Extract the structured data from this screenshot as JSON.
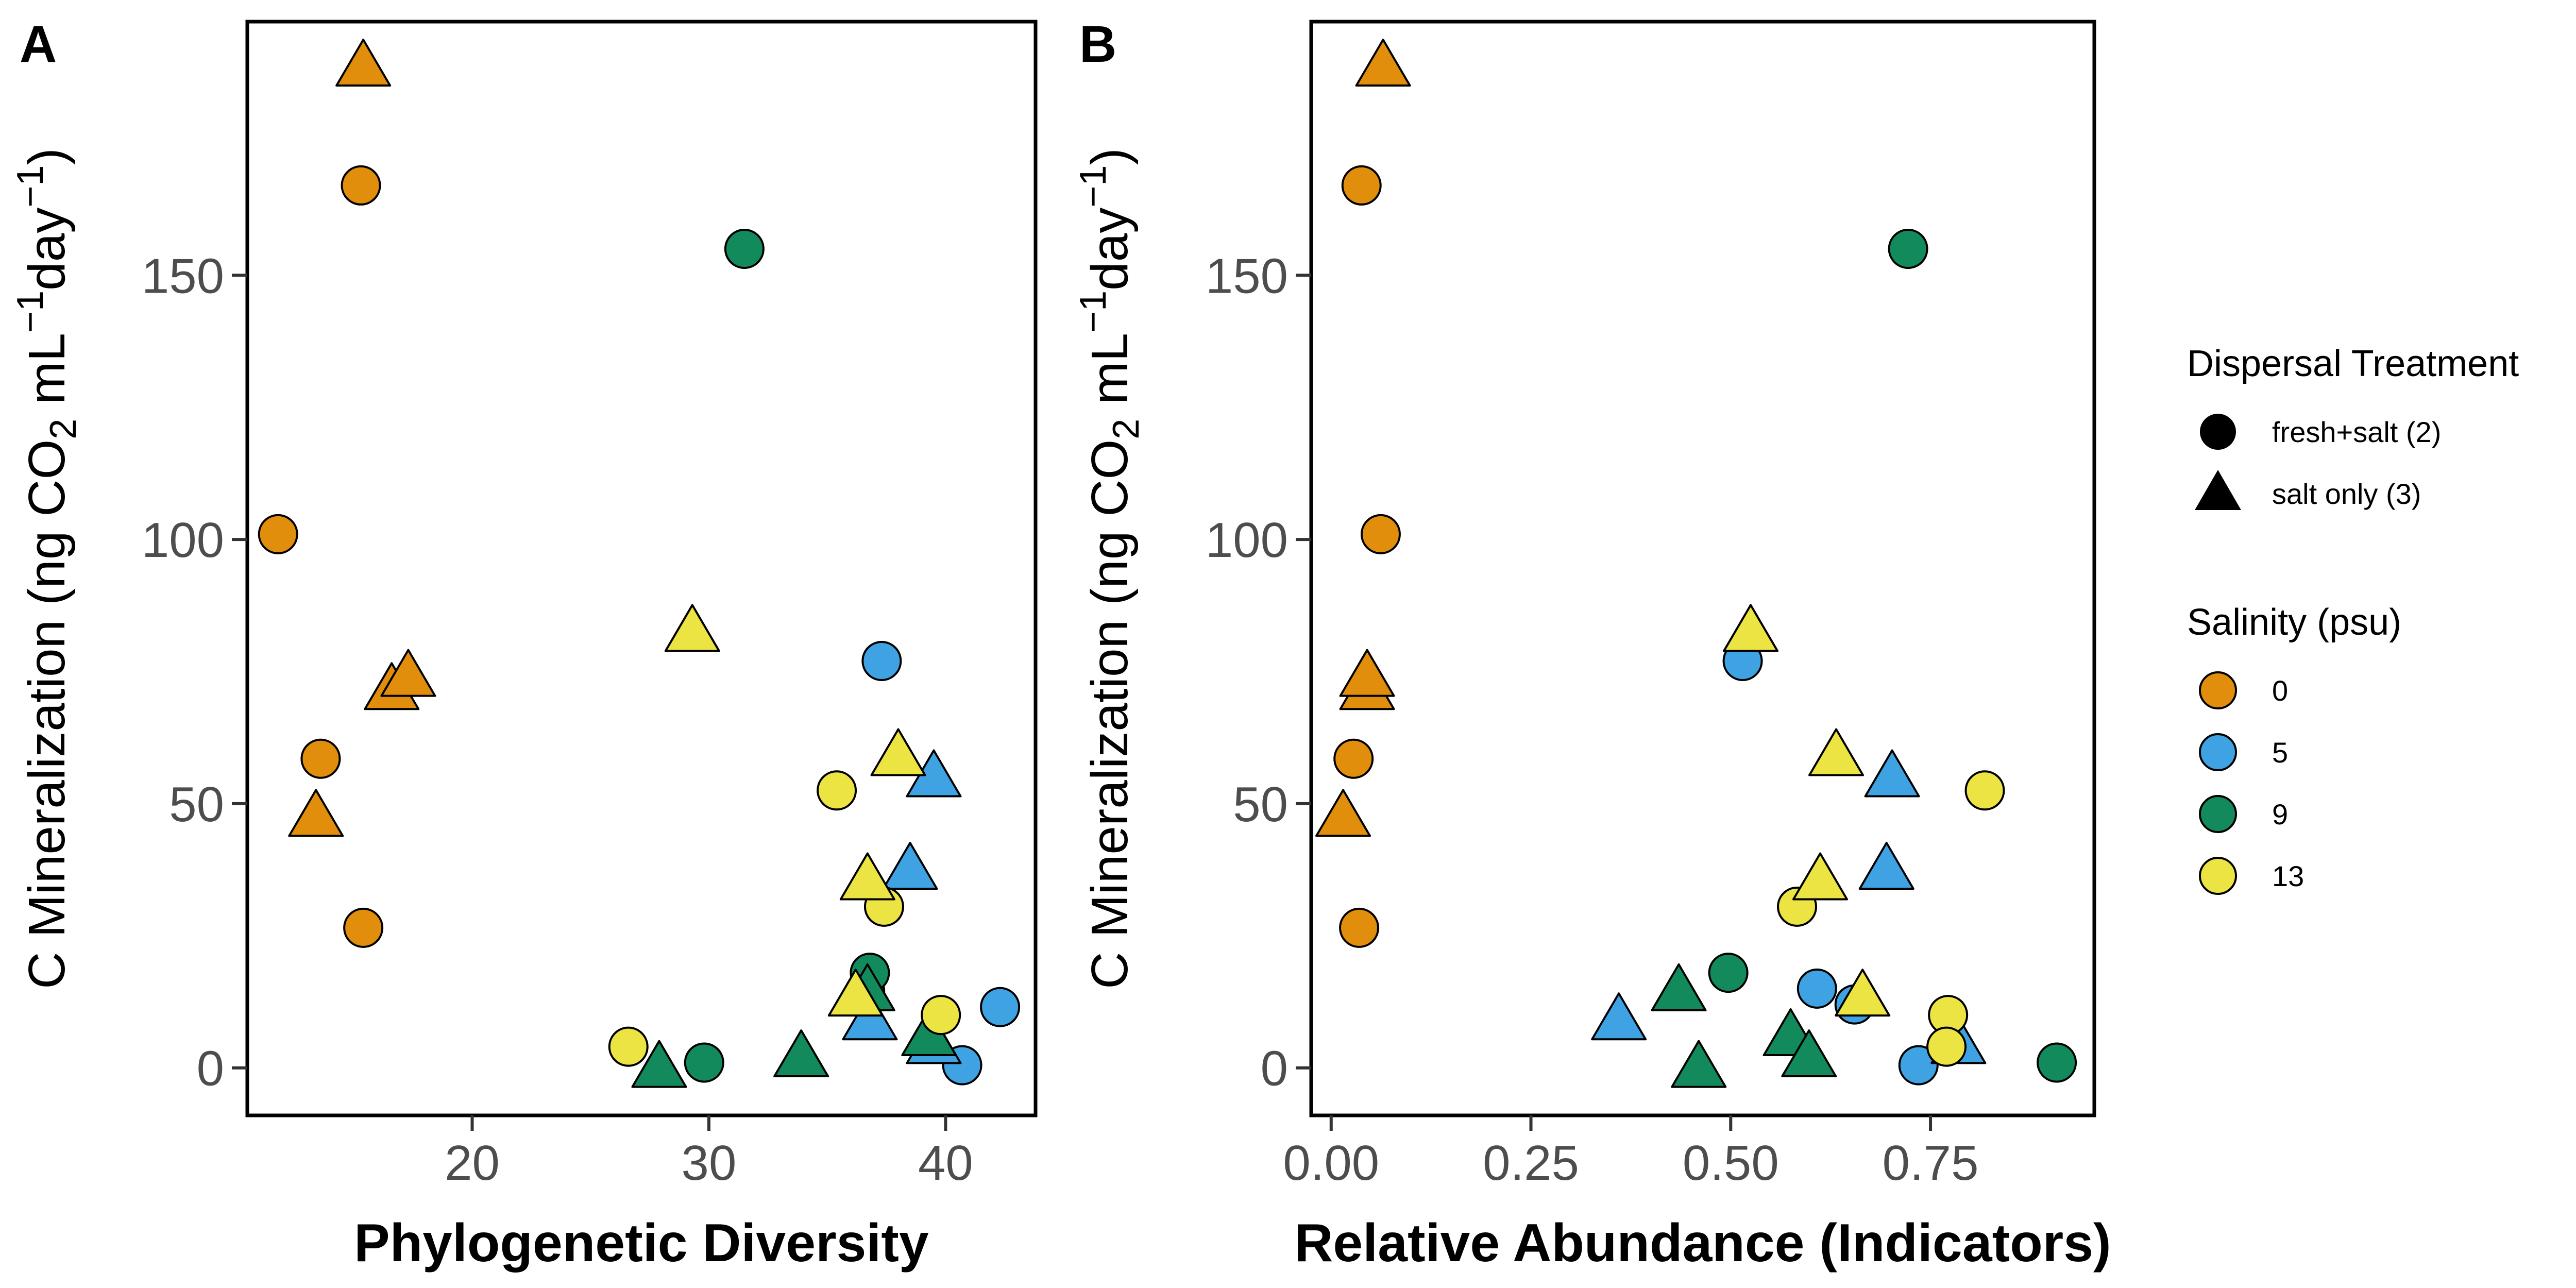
{
  "legend": {
    "shape_title": "Dispersal Treatment",
    "shape_entries": [
      {
        "label": "fresh+salt (2)",
        "shape": "circle"
      },
      {
        "label": "salt only (3)",
        "shape": "triangle"
      }
    ],
    "color_title": "Salinity (psu)",
    "color_entries": [
      {
        "label": "0",
        "color": "#E08E0B"
      },
      {
        "label": "5",
        "color": "#3FA3E3"
      },
      {
        "label": "9",
        "color": "#138A5C"
      },
      {
        "label": "13",
        "color": "#ECE442"
      }
    ]
  },
  "chart_data": [
    {
      "type": "scatter",
      "panel": "A",
      "xlabel": "Phylogenetic Diversity",
      "ylabel": {
        "main": "C Mineralization (ng CO",
        "sub": "2",
        "mid": " mL",
        "sup1": "−1",
        "mid2": "day",
        "sup2": "−1",
        "end": ")"
      },
      "xlim": [
        10.5,
        43.8
      ],
      "ylim": [
        -9,
        198
      ],
      "xticks": [
        20,
        30,
        40
      ],
      "xtick_labels": [
        "20",
        "30",
        "40"
      ],
      "yticks": [
        0,
        50,
        100,
        150
      ],
      "ytick_labels": [
        "0",
        "50",
        "100",
        "150"
      ],
      "grid": false,
      "points": [
        {
          "x": 11.8,
          "y": 101,
          "shape": "circle",
          "salinity": "0"
        },
        {
          "x": 15.3,
          "y": 167,
          "shape": "circle",
          "salinity": "0"
        },
        {
          "x": 13.6,
          "y": 58.5,
          "shape": "circle",
          "salinity": "0"
        },
        {
          "x": 15.4,
          "y": 26.5,
          "shape": "circle",
          "salinity": "0"
        },
        {
          "x": 15.4,
          "y": 190,
          "shape": "triangle",
          "salinity": "0"
        },
        {
          "x": 16.6,
          "y": 72,
          "shape": "triangle",
          "salinity": "0"
        },
        {
          "x": 17.3,
          "y": 74.5,
          "shape": "triangle",
          "salinity": "0"
        },
        {
          "x": 13.4,
          "y": 48,
          "shape": "triangle",
          "salinity": "0"
        },
        {
          "x": 37.3,
          "y": 77,
          "shape": "circle",
          "salinity": "5"
        },
        {
          "x": 42.3,
          "y": 11.5,
          "shape": "circle",
          "salinity": "5"
        },
        {
          "x": 40.7,
          "y": 0.5,
          "shape": "circle",
          "salinity": "5"
        },
        {
          "x": 36.6,
          "y": 14.5,
          "shape": "circle",
          "salinity": "5"
        },
        {
          "x": 39.5,
          "y": 55.5,
          "shape": "triangle",
          "salinity": "5"
        },
        {
          "x": 38.5,
          "y": 38,
          "shape": "triangle",
          "salinity": "5"
        },
        {
          "x": 36.8,
          "y": 9.5,
          "shape": "triangle",
          "salinity": "5"
        },
        {
          "x": 39.5,
          "y": 5,
          "shape": "triangle",
          "salinity": "5"
        },
        {
          "x": 31.5,
          "y": 155,
          "shape": "circle",
          "salinity": "9"
        },
        {
          "x": 29.8,
          "y": 1,
          "shape": "circle",
          "salinity": "9"
        },
        {
          "x": 36.8,
          "y": 18,
          "shape": "circle",
          "salinity": "9"
        },
        {
          "x": 27.9,
          "y": 0.5,
          "shape": "triangle",
          "salinity": "9"
        },
        {
          "x": 33.9,
          "y": 2.5,
          "shape": "triangle",
          "salinity": "9"
        },
        {
          "x": 36.7,
          "y": 15,
          "shape": "triangle",
          "salinity": "9"
        },
        {
          "x": 39.3,
          "y": 6.5,
          "shape": "triangle",
          "salinity": "9"
        },
        {
          "x": 35.4,
          "y": 52.5,
          "shape": "circle",
          "salinity": "13"
        },
        {
          "x": 37.4,
          "y": 30.5,
          "shape": "circle",
          "salinity": "13"
        },
        {
          "x": 26.6,
          "y": 4,
          "shape": "circle",
          "salinity": "13"
        },
        {
          "x": 39.8,
          "y": 10,
          "shape": "circle",
          "salinity": "13"
        },
        {
          "x": 29.3,
          "y": 83,
          "shape": "triangle",
          "salinity": "13"
        },
        {
          "x": 38.0,
          "y": 59.5,
          "shape": "triangle",
          "salinity": "13"
        },
        {
          "x": 36.7,
          "y": 36,
          "shape": "triangle",
          "salinity": "13"
        },
        {
          "x": 36.2,
          "y": 14,
          "shape": "triangle",
          "salinity": "13"
        }
      ]
    },
    {
      "type": "scatter",
      "panel": "B",
      "xlabel": "Relative Abundance (Indicators)",
      "ylabel": {
        "main": "C Mineralization (ng CO",
        "sub": "2",
        "mid": " mL",
        "sup1": "−1",
        "mid2": "day",
        "sup2": "−1",
        "end": ")"
      },
      "xlim": [
        -0.025,
        0.955
      ],
      "ylim": [
        -9,
        198
      ],
      "xticks": [
        0,
        0.25,
        0.5,
        0.75
      ],
      "xtick_labels": [
        "0.00",
        "0.25",
        "0.50",
        "0.75"
      ],
      "yticks": [
        0,
        50,
        100,
        150
      ],
      "ytick_labels": [
        "0",
        "50",
        "100",
        "150"
      ],
      "grid": false,
      "points": [
        {
          "x": 0.038,
          "y": 167,
          "shape": "circle",
          "salinity": "0"
        },
        {
          "x": 0.062,
          "y": 101,
          "shape": "circle",
          "salinity": "0"
        },
        {
          "x": 0.028,
          "y": 58.5,
          "shape": "circle",
          "salinity": "0"
        },
        {
          "x": 0.035,
          "y": 26.5,
          "shape": "circle",
          "salinity": "0"
        },
        {
          "x": 0.065,
          "y": 190,
          "shape": "triangle",
          "salinity": "0"
        },
        {
          "x": 0.045,
          "y": 72,
          "shape": "triangle",
          "salinity": "0"
        },
        {
          "x": 0.045,
          "y": 74.5,
          "shape": "triangle",
          "salinity": "0"
        },
        {
          "x": 0.015,
          "y": 48,
          "shape": "triangle",
          "salinity": "0"
        },
        {
          "x": 0.515,
          "y": 77,
          "shape": "circle",
          "salinity": "5"
        },
        {
          "x": 0.608,
          "y": 15,
          "shape": "circle",
          "salinity": "5"
        },
        {
          "x": 0.655,
          "y": 12,
          "shape": "circle",
          "salinity": "5"
        },
        {
          "x": 0.735,
          "y": 0.5,
          "shape": "circle",
          "salinity": "5"
        },
        {
          "x": 0.702,
          "y": 55.5,
          "shape": "triangle",
          "salinity": "5"
        },
        {
          "x": 0.695,
          "y": 38,
          "shape": "triangle",
          "salinity": "5"
        },
        {
          "x": 0.36,
          "y": 9.5,
          "shape": "triangle",
          "salinity": "5"
        },
        {
          "x": 0.785,
          "y": 5,
          "shape": "triangle",
          "salinity": "5"
        },
        {
          "x": 0.722,
          "y": 155,
          "shape": "circle",
          "salinity": "9"
        },
        {
          "x": 0.497,
          "y": 18,
          "shape": "circle",
          "salinity": "9"
        },
        {
          "x": 0.908,
          "y": 1,
          "shape": "circle",
          "salinity": "9"
        },
        {
          "x": 0.435,
          "y": 15,
          "shape": "triangle",
          "salinity": "9"
        },
        {
          "x": 0.46,
          "y": 0.5,
          "shape": "triangle",
          "salinity": "9"
        },
        {
          "x": 0.575,
          "y": 6.5,
          "shape": "triangle",
          "salinity": "9"
        },
        {
          "x": 0.598,
          "y": 2.5,
          "shape": "triangle",
          "salinity": "9"
        },
        {
          "x": 0.818,
          "y": 52.5,
          "shape": "circle",
          "salinity": "13"
        },
        {
          "x": 0.583,
          "y": 30.5,
          "shape": "circle",
          "salinity": "13"
        },
        {
          "x": 0.772,
          "y": 10,
          "shape": "circle",
          "salinity": "13"
        },
        {
          "x": 0.77,
          "y": 4,
          "shape": "circle",
          "salinity": "13"
        },
        {
          "x": 0.525,
          "y": 83,
          "shape": "triangle",
          "salinity": "13"
        },
        {
          "x": 0.632,
          "y": 59.5,
          "shape": "triangle",
          "salinity": "13"
        },
        {
          "x": 0.612,
          "y": 36,
          "shape": "triangle",
          "salinity": "13"
        },
        {
          "x": 0.665,
          "y": 14,
          "shape": "triangle",
          "salinity": "13"
        }
      ]
    }
  ]
}
